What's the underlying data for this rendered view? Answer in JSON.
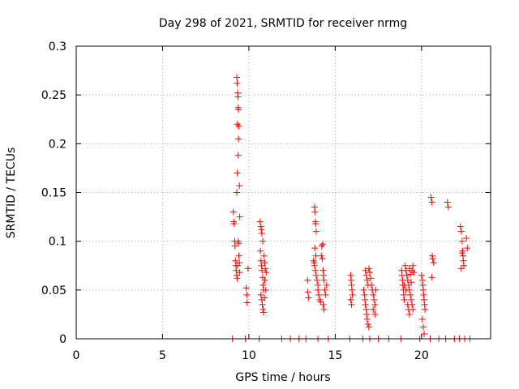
{
  "chart_data": {
    "type": "scatter",
    "title": "Day 298 of 2021, SRMTID for receiver nrmg",
    "xlabel": "GPS time / hours",
    "ylabel": "SRMTID / TECUs",
    "xlim": [
      0,
      24
    ],
    "ylim": [
      0,
      0.3
    ],
    "xticks": [
      0,
      5,
      10,
      15,
      20
    ],
    "yticks": [
      0,
      0.05,
      0.1,
      0.15,
      0.2,
      0.25,
      0.3
    ],
    "xtick_labels": [
      "0",
      "5",
      "10",
      "15",
      "20"
    ],
    "ytick_labels": [
      "0",
      "0.05",
      "0.1",
      "0.15",
      "0.2",
      "0.25",
      "0.3"
    ],
    "grid": true,
    "marker": "+",
    "color": "#ff0000",
    "series": [
      {
        "name": "SRMTID",
        "points": [
          [
            9.05,
            0.0
          ],
          [
            9.1,
            0.13
          ],
          [
            9.12,
            0.12
          ],
          [
            9.15,
            0.118
          ],
          [
            9.18,
            0.1
          ],
          [
            9.2,
            0.095
          ],
          [
            9.22,
            0.08
          ],
          [
            9.25,
            0.075
          ],
          [
            9.27,
            0.07
          ],
          [
            9.3,
            0.065
          ],
          [
            9.32,
            0.062
          ],
          [
            9.35,
            0.075
          ],
          [
            9.38,
            0.1
          ],
          [
            9.4,
            0.098
          ],
          [
            9.42,
            0.085
          ],
          [
            9.45,
            0.078
          ],
          [
            9.47,
            0.068
          ],
          [
            9.3,
            0.268
          ],
          [
            9.32,
            0.262
          ],
          [
            9.35,
            0.252
          ],
          [
            9.37,
            0.248
          ],
          [
            9.38,
            0.237
          ],
          [
            9.4,
            0.235
          ],
          [
            9.33,
            0.22
          ],
          [
            9.42,
            0.218
          ],
          [
            9.4,
            0.205
          ],
          [
            9.38,
            0.188
          ],
          [
            9.33,
            0.17
          ],
          [
            9.45,
            0.157
          ],
          [
            9.3,
            0.15
          ],
          [
            9.47,
            0.125
          ],
          [
            9.8,
            0.0
          ],
          [
            9.85,
            0.052
          ],
          [
            9.88,
            0.045
          ],
          [
            9.9,
            0.037
          ],
          [
            9.95,
            0.072
          ],
          [
            10.6,
            0.0
          ],
          [
            10.65,
            0.12
          ],
          [
            10.7,
            0.115
          ],
          [
            10.72,
            0.112
          ],
          [
            10.75,
            0.108
          ],
          [
            10.8,
            0.1
          ],
          [
            10.67,
            0.09
          ],
          [
            10.7,
            0.08
          ],
          [
            10.73,
            0.075
          ],
          [
            10.76,
            0.07
          ],
          [
            10.8,
            0.063
          ],
          [
            10.82,
            0.055
          ],
          [
            10.85,
            0.05
          ],
          [
            10.7,
            0.045
          ],
          [
            10.75,
            0.04
          ],
          [
            10.78,
            0.035
          ],
          [
            10.82,
            0.03
          ],
          [
            10.85,
            0.027
          ],
          [
            10.9,
            0.042
          ],
          [
            10.92,
            0.078
          ],
          [
            10.95,
            0.072
          ],
          [
            11.0,
            0.068
          ],
          [
            10.88,
            0.085
          ],
          [
            10.92,
            0.06
          ],
          [
            10.98,
            0.05
          ],
          [
            11.9,
            0.0
          ],
          [
            12.4,
            0.0
          ],
          [
            12.9,
            0.0
          ],
          [
            13.3,
            0.0
          ],
          [
            13.4,
            0.06
          ],
          [
            13.42,
            0.048
          ],
          [
            13.45,
            0.042
          ],
          [
            13.8,
            0.135
          ],
          [
            13.82,
            0.13
          ],
          [
            13.85,
            0.12
          ],
          [
            13.87,
            0.118
          ],
          [
            13.9,
            0.11
          ],
          [
            13.75,
            0.08
          ],
          [
            13.78,
            0.078
          ],
          [
            13.8,
            0.075
          ],
          [
            13.85,
            0.07
          ],
          [
            13.9,
            0.065
          ],
          [
            13.95,
            0.06
          ],
          [
            14.0,
            0.055
          ],
          [
            13.82,
            0.093
          ],
          [
            13.88,
            0.085
          ],
          [
            14.0,
            0.05
          ],
          [
            14.05,
            0.045
          ],
          [
            14.1,
            0.04
          ],
          [
            14.15,
            0.038
          ],
          [
            14.2,
            0.085
          ],
          [
            14.25,
            0.082
          ],
          [
            14.22,
            0.095
          ],
          [
            14.28,
            0.097
          ],
          [
            14.3,
            0.07
          ],
          [
            14.32,
            0.065
          ],
          [
            14.35,
            0.06
          ],
          [
            14.4,
            0.05
          ],
          [
            14.45,
            0.045
          ],
          [
            14.3,
            0.035
          ],
          [
            14.35,
            0.03
          ],
          [
            14.5,
            0.055
          ],
          [
            14.0,
            0.0
          ],
          [
            14.6,
            0.0
          ],
          [
            15.85,
            0.0
          ],
          [
            15.9,
            0.065
          ],
          [
            15.92,
            0.06
          ],
          [
            15.95,
            0.055
          ],
          [
            15.97,
            0.05
          ],
          [
            16.0,
            0.045
          ],
          [
            15.9,
            0.04
          ],
          [
            15.95,
            0.035
          ],
          [
            16.6,
            0.0
          ],
          [
            16.65,
            0.05
          ],
          [
            16.7,
            0.045
          ],
          [
            16.72,
            0.04
          ],
          [
            16.75,
            0.035
          ],
          [
            16.8,
            0.03
          ],
          [
            16.82,
            0.025
          ],
          [
            16.85,
            0.02
          ],
          [
            16.9,
            0.015
          ],
          [
            16.95,
            0.012
          ],
          [
            16.75,
            0.07
          ],
          [
            16.8,
            0.065
          ],
          [
            16.85,
            0.06
          ],
          [
            16.9,
            0.055
          ],
          [
            16.95,
            0.072
          ],
          [
            17.0,
            0.068
          ],
          [
            17.05,
            0.062
          ],
          [
            17.1,
            0.055
          ],
          [
            17.15,
            0.05
          ],
          [
            17.2,
            0.045
          ],
          [
            17.25,
            0.04
          ],
          [
            17.3,
            0.035
          ],
          [
            17.2,
            0.03
          ],
          [
            17.3,
            0.025
          ],
          [
            17.35,
            0.05
          ],
          [
            17.0,
            0.0
          ],
          [
            17.5,
            0.0
          ],
          [
            18.1,
            0.0
          ],
          [
            18.8,
            0.0
          ],
          [
            18.85,
            0.07
          ],
          [
            18.87,
            0.065
          ],
          [
            18.9,
            0.06
          ],
          [
            18.92,
            0.055
          ],
          [
            18.95,
            0.05
          ],
          [
            18.97,
            0.045
          ],
          [
            19.0,
            0.04
          ],
          [
            19.05,
            0.075
          ],
          [
            19.1,
            0.07
          ],
          [
            19.15,
            0.065
          ],
          [
            19.2,
            0.06
          ],
          [
            19.25,
            0.055
          ],
          [
            19.3,
            0.05
          ],
          [
            19.35,
            0.045
          ],
          [
            19.4,
            0.04
          ],
          [
            19.45,
            0.07
          ],
          [
            19.5,
            0.075
          ],
          [
            19.55,
            0.068
          ],
          [
            19.3,
            0.072
          ],
          [
            19.35,
            0.066
          ],
          [
            19.4,
            0.058
          ],
          [
            19.2,
            0.035
          ],
          [
            19.25,
            0.03
          ],
          [
            19.3,
            0.025
          ],
          [
            19.45,
            0.035
          ],
          [
            19.5,
            0.03
          ],
          [
            19.0,
            0.055
          ],
          [
            19.1,
            0.05
          ],
          [
            19.9,
            0.0
          ],
          [
            20.0,
            0.065
          ],
          [
            20.05,
            0.06
          ],
          [
            20.08,
            0.055
          ],
          [
            20.1,
            0.05
          ],
          [
            20.12,
            0.045
          ],
          [
            20.15,
            0.04
          ],
          [
            20.18,
            0.035
          ],
          [
            20.2,
            0.03
          ],
          [
            20.05,
            0.02
          ],
          [
            20.1,
            0.012
          ],
          [
            20.15,
            0.005
          ],
          [
            20.5,
            0.0
          ],
          [
            20.55,
            0.145
          ],
          [
            20.6,
            0.14
          ],
          [
            20.62,
            0.085
          ],
          [
            20.65,
            0.082
          ],
          [
            20.7,
            0.078
          ],
          [
            20.6,
            0.063
          ],
          [
            21.0,
            0.0
          ],
          [
            21.4,
            0.0
          ],
          [
            21.5,
            0.14
          ],
          [
            21.55,
            0.135
          ],
          [
            21.9,
            0.0
          ],
          [
            22.2,
            0.0
          ],
          [
            22.25,
            0.115
          ],
          [
            22.3,
            0.11
          ],
          [
            22.35,
            0.1
          ],
          [
            22.38,
            0.09
          ],
          [
            22.4,
            0.085
          ],
          [
            22.42,
            0.08
          ],
          [
            22.45,
            0.075
          ],
          [
            22.3,
            0.072
          ],
          [
            22.35,
            0.088
          ],
          [
            22.5,
            0.0
          ],
          [
            22.6,
            0.103
          ],
          [
            22.65,
            0.093
          ],
          [
            22.8,
            0.0
          ]
        ]
      }
    ]
  }
}
